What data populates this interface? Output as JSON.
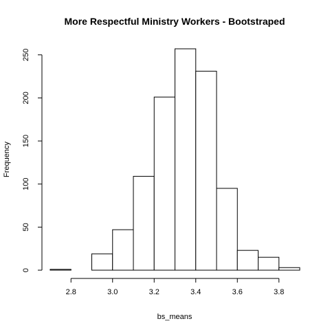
{
  "chart_data": {
    "type": "bar",
    "title": "More Respectful Ministry Workers - Bootstraped",
    "xlabel": "bs_means",
    "ylabel": "Frequency",
    "bin_edges": [
      2.7,
      2.8,
      2.9,
      3.0,
      3.1,
      3.2,
      3.3,
      3.4,
      3.5,
      3.6,
      3.7,
      3.8,
      3.9
    ],
    "values": [
      1,
      0,
      19,
      47,
      109,
      201,
      257,
      231,
      95,
      23,
      15,
      3
    ],
    "xlim": [
      2.7,
      3.9
    ],
    "ylim": [
      0,
      257
    ],
    "x_ticks": [
      "2.8",
      "3.0",
      "3.2",
      "3.4",
      "3.6",
      "3.8"
    ],
    "y_ticks": [
      "0",
      "50",
      "100",
      "150",
      "200",
      "250"
    ],
    "grid": false,
    "legend": "none",
    "bar_fill": "#ffffff",
    "bar_stroke": "#000000"
  }
}
